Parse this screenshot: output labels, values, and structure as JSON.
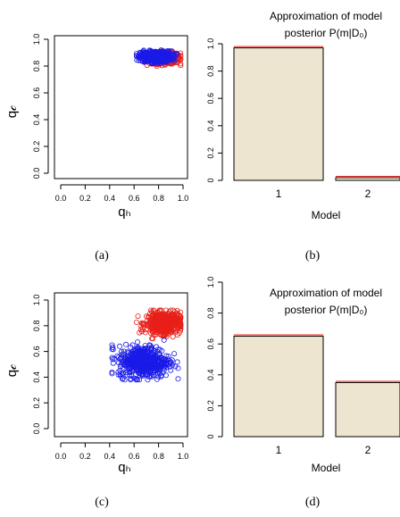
{
  "chart_data": [
    {
      "type": "scatter",
      "panel": "(a)",
      "xlabel": "qₕ",
      "ylabel": "q𝒸",
      "xlim": [
        0,
        1
      ],
      "ylim": [
        0,
        1
      ],
      "xticks": [
        "0.0",
        "0.2",
        "0.4",
        "0.6",
        "0.8",
        "1.0"
      ],
      "yticks": [
        "0.0",
        "0.2",
        "0.4",
        "0.6",
        "0.8",
        "1.0"
      ],
      "series": [
        {
          "color": "#e8201a",
          "cluster": {
            "x_range": [
              0.65,
              0.98
            ],
            "y_range": [
              0.8,
              0.91
            ],
            "center": [
              0.85,
              0.86
            ]
          }
        },
        {
          "color": "#1a1ae8",
          "cluster": {
            "x_range": [
              0.62,
              0.95
            ],
            "y_range": [
              0.82,
              0.93
            ],
            "center": [
              0.78,
              0.87
            ]
          }
        }
      ]
    },
    {
      "type": "bar",
      "panel": "(b)",
      "title": "Approximation of model posterior P(m|D₀)",
      "xlabel": "Model",
      "categories": [
        "1",
        "2"
      ],
      "values": [
        0.97,
        0.02
      ],
      "ylim": [
        0,
        1
      ],
      "yticks": [
        "0",
        "0.2",
        "0.4",
        "0.6",
        "0.8",
        "1.0"
      ]
    },
    {
      "type": "scatter",
      "panel": "(c)",
      "xlabel": "qₕ",
      "ylabel": "q𝒸",
      "xlim": [
        0,
        1
      ],
      "ylim": [
        0,
        1
      ],
      "xticks": [
        "0.0",
        "0.2",
        "0.4",
        "0.6",
        "0.8",
        "1.0"
      ],
      "yticks": [
        "0.0",
        "0.2",
        "0.4",
        "0.6",
        "0.8",
        "1.0"
      ],
      "series": [
        {
          "color": "#e8201a",
          "cluster": {
            "x_range": [
              0.62,
              0.98
            ],
            "y_range": [
              0.7,
              0.92
            ],
            "center": [
              0.84,
              0.82
            ]
          }
        },
        {
          "color": "#1a1ae8",
          "cluster": {
            "x_range": [
              0.42,
              0.96
            ],
            "y_range": [
              0.38,
              0.7
            ],
            "center": [
              0.68,
              0.52
            ]
          }
        }
      ]
    },
    {
      "type": "bar",
      "panel": "(d)",
      "title": "Approximation of model posterior P(m|D₀)",
      "xlabel": "Model",
      "categories": [
        "1",
        "2"
      ],
      "values": [
        0.65,
        0.35
      ],
      "ylim": [
        0,
        1
      ],
      "yticks": [
        "0",
        "0.2",
        "0.4",
        "0.6",
        "0.8",
        "1.0"
      ]
    }
  ],
  "captions": [
    "(a)",
    "(b)",
    "(c)",
    "(d)"
  ],
  "colors": {
    "bar_fill": "#ede5cf",
    "red": "#e8201a",
    "blue": "#1a1ae8"
  }
}
